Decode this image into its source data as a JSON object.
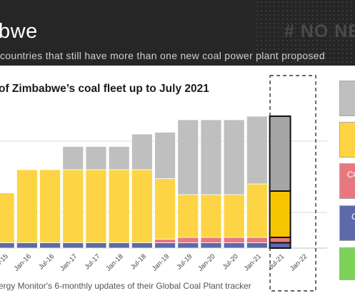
{
  "header": {
    "title": "bwe",
    "hashtag": "# NO NE",
    "subtitle": "countries that still have more than one new coal power plant proposed"
  },
  "chart_title": "of Zimbabwe’s coal fleet up to July 2021",
  "source": "ergy Monitor's 6-monthly updates of their Global Coal Plant tracker",
  "colors": {
    "banner": "#262626",
    "grey": "#bfbfbf",
    "yellow": "#fdd443",
    "pink": "#e87880",
    "blue": "#5c6aab",
    "green": "#7dd35a",
    "dark_yellow": "#f7c400",
    "dark_grey": "#a6a6a6"
  },
  "legend_fragments": {
    "pink": "CO",
    "blue": "C"
  },
  "chart_data": {
    "type": "bar",
    "stacked": true,
    "title": "of Zimbabwe’s coal fleet up to July 2021",
    "categories": [
      "",
      "Jul-15",
      "Jan-16",
      "Jul-16",
      "Jan-17",
      "Jul-17",
      "Jan-18",
      "Jul-18",
      "Jan-19",
      "Jul-19",
      "Jan-20",
      "Jul-20",
      "Jan-21",
      "Jul-21",
      "Jan-22"
    ],
    "series": [
      {
        "color_key": "blue",
        "values": [
          3.0,
          3.0,
          3.0,
          3.0,
          3.0,
          3.0,
          3.0,
          3.0,
          3.0,
          3.0,
          3.0,
          3.0,
          3.0,
          3.0,
          0
        ]
      },
      {
        "color_key": "pink",
        "values": [
          0,
          0,
          0,
          0,
          0,
          0,
          0,
          0,
          2.0,
          3.0,
          3.0,
          3.0,
          3.0,
          3.0,
          0
        ]
      },
      {
        "color_key": "yellow",
        "values": [
          28.0,
          28.0,
          41.0,
          41.0,
          41.0,
          41.0,
          41.0,
          41.0,
          34.0,
          24.0,
          24.0,
          24.0,
          30.0,
          26.0,
          0
        ]
      },
      {
        "color_key": "grey",
        "values": [
          0,
          0,
          0,
          0,
          13.0,
          13.0,
          13.0,
          20.0,
          26.0,
          42.0,
          42.0,
          42.0,
          38.0,
          42.0,
          0
        ]
      }
    ],
    "highlight_category": "Jul-21",
    "ylim": [
      0,
      80
    ],
    "grid": true
  }
}
